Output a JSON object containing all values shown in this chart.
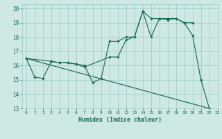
{
  "xlabel": "Humidex (Indice chaleur)",
  "xlim": [
    -0.5,
    23
  ],
  "ylim": [
    13,
    20.3
  ],
  "yticks": [
    13,
    14,
    15,
    16,
    17,
    18,
    19,
    20
  ],
  "xticks": [
    0,
    1,
    2,
    3,
    4,
    5,
    6,
    7,
    8,
    9,
    10,
    11,
    12,
    13,
    14,
    15,
    16,
    17,
    18,
    19,
    20,
    21,
    22,
    23
  ],
  "bg_color": "#cde8e5",
  "grid_color": "#a0c8c5",
  "line_color": "#1a6b5a",
  "line1_x": [
    0,
    1,
    2,
    3,
    4,
    5,
    6,
    7,
    8,
    9,
    10,
    11,
    12,
    13,
    14,
    15,
    16,
    17,
    18,
    19,
    20,
    21,
    22
  ],
  "line1_y": [
    16.5,
    15.2,
    15.1,
    16.3,
    16.2,
    16.2,
    16.1,
    16.0,
    14.8,
    15.1,
    17.7,
    17.7,
    18.0,
    18.0,
    19.8,
    18.0,
    19.3,
    19.2,
    19.3,
    19.0,
    18.1,
    15.0,
    13.0
  ],
  "line2_x": [
    0,
    3,
    4,
    5,
    6,
    7,
    10,
    11,
    12,
    13,
    14,
    15,
    16,
    17,
    18,
    19,
    20
  ],
  "line2_y": [
    16.5,
    16.3,
    16.2,
    16.2,
    16.1,
    15.9,
    16.6,
    16.6,
    17.8,
    18.0,
    19.8,
    19.3,
    19.3,
    19.3,
    19.3,
    19.0,
    19.0
  ],
  "line3_x": [
    0,
    22
  ],
  "line3_y": [
    16.5,
    13.0
  ]
}
